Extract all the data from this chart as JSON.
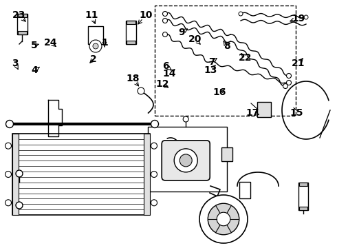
{
  "bg_color": "#ffffff",
  "line_color": "#000000",
  "text_color": "#000000",
  "label_data": {
    "23": [
      28,
      338,
      40,
      326
    ],
    "11": [
      133,
      338,
      140,
      322
    ],
    "10": [
      212,
      338,
      198,
      322
    ],
    "3": [
      22,
      268,
      28,
      256
    ],
    "24": [
      74,
      298,
      82,
      292
    ],
    "18": [
      193,
      246,
      204,
      232
    ],
    "2": [
      136,
      274,
      130,
      268
    ],
    "4": [
      50,
      258,
      58,
      263
    ],
    "5": [
      50,
      294,
      57,
      296
    ],
    "1": [
      152,
      298,
      152,
      292
    ],
    "6": [
      241,
      264,
      250,
      258
    ],
    "7": [
      308,
      270,
      316,
      276
    ],
    "8": [
      330,
      293,
      323,
      303
    ],
    "9": [
      264,
      313,
      276,
      320
    ],
    "12": [
      236,
      238,
      248,
      231
    ],
    "14": [
      246,
      253,
      255,
      260
    ],
    "13": [
      306,
      258,
      314,
      266
    ],
    "16": [
      319,
      226,
      330,
      233
    ],
    "17": [
      367,
      196,
      380,
      193
    ],
    "15": [
      431,
      196,
      427,
      204
    ],
    "20": [
      284,
      303,
      294,
      293
    ],
    "19": [
      434,
      333,
      418,
      328
    ],
    "22": [
      357,
      276,
      350,
      283
    ],
    "21": [
      434,
      268,
      441,
      276
    ]
  }
}
